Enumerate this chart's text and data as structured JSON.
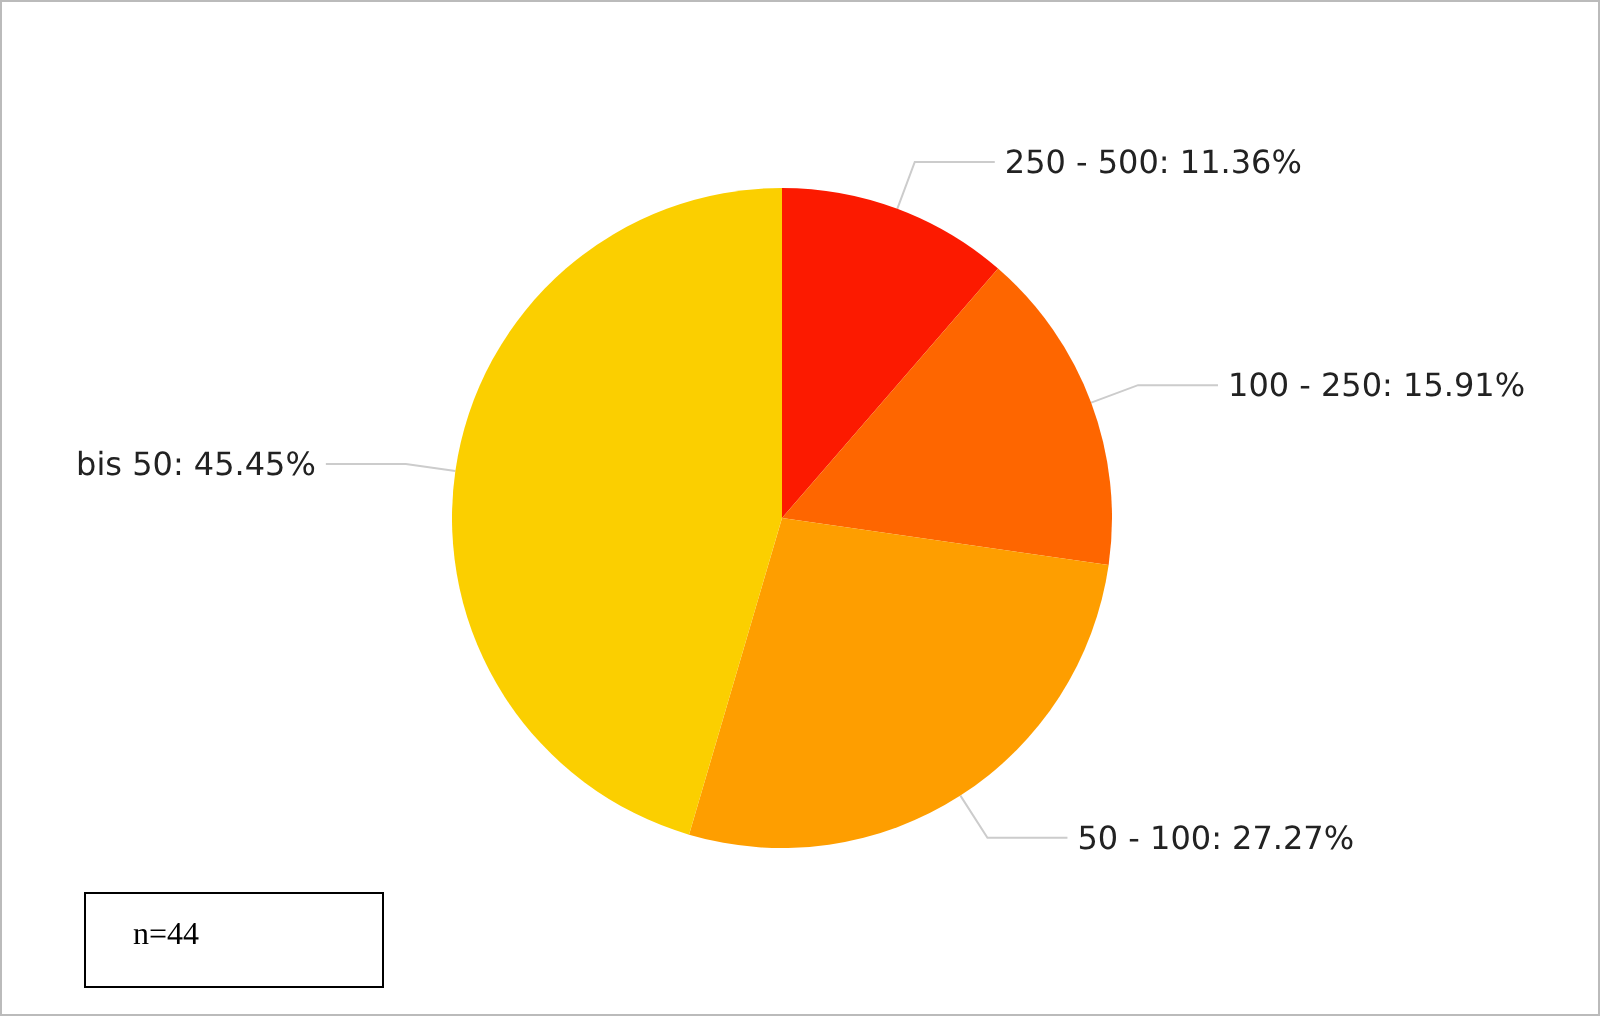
{
  "chart_data": {
    "type": "pie",
    "categories": [
      "250 - 500",
      "100 - 250",
      "50 - 100",
      "bis 50"
    ],
    "values": [
      11.36,
      15.91,
      27.27,
      45.45
    ],
    "value_labels": [
      "11.36%",
      "15.91%",
      "27.27%",
      "45.45%"
    ],
    "colors": [
      "#fc1a00",
      "#fe6600",
      "#fe9e00",
      "#fbcf00"
    ],
    "annotations": [
      "n=44"
    ],
    "legend": false
  }
}
